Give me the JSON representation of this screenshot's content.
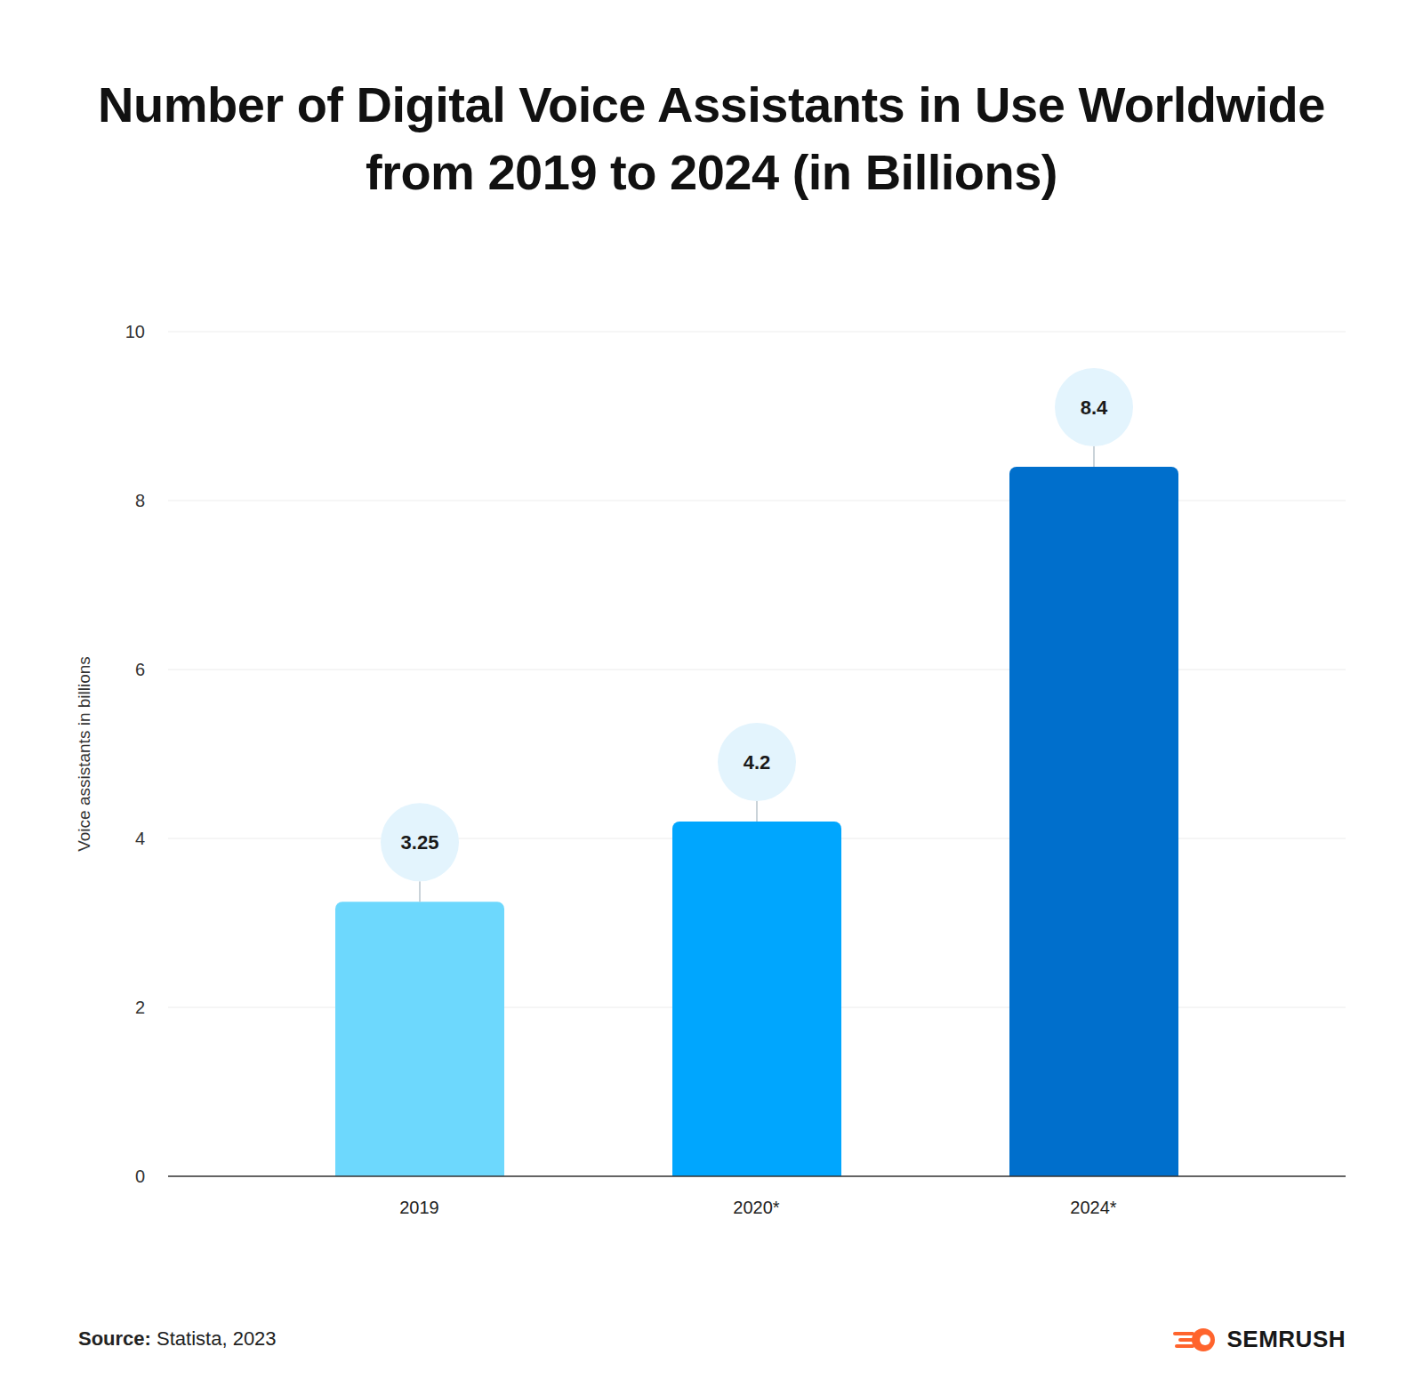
{
  "chart_data": {
    "type": "bar",
    "title": "Number of Digital Voice Assistants in Use Worldwide from 2019 to 2024 (in Billions)",
    "y_label": "Voice assistants in billions",
    "categories": [
      "2019",
      "2020*",
      "2024*"
    ],
    "values": [
      3.25,
      4.2,
      8.4
    ],
    "colors": [
      "#6dd8fd",
      "#00a6fe",
      "#006fcc"
    ],
    "ylim": [
      0,
      10
    ],
    "yticks": [
      0,
      2,
      4,
      6,
      8,
      10
    ],
    "grid": true,
    "data_labels": true,
    "source_label": "Source:",
    "source": "Statista, 2023",
    "logo_text": "SEMRUSH"
  }
}
